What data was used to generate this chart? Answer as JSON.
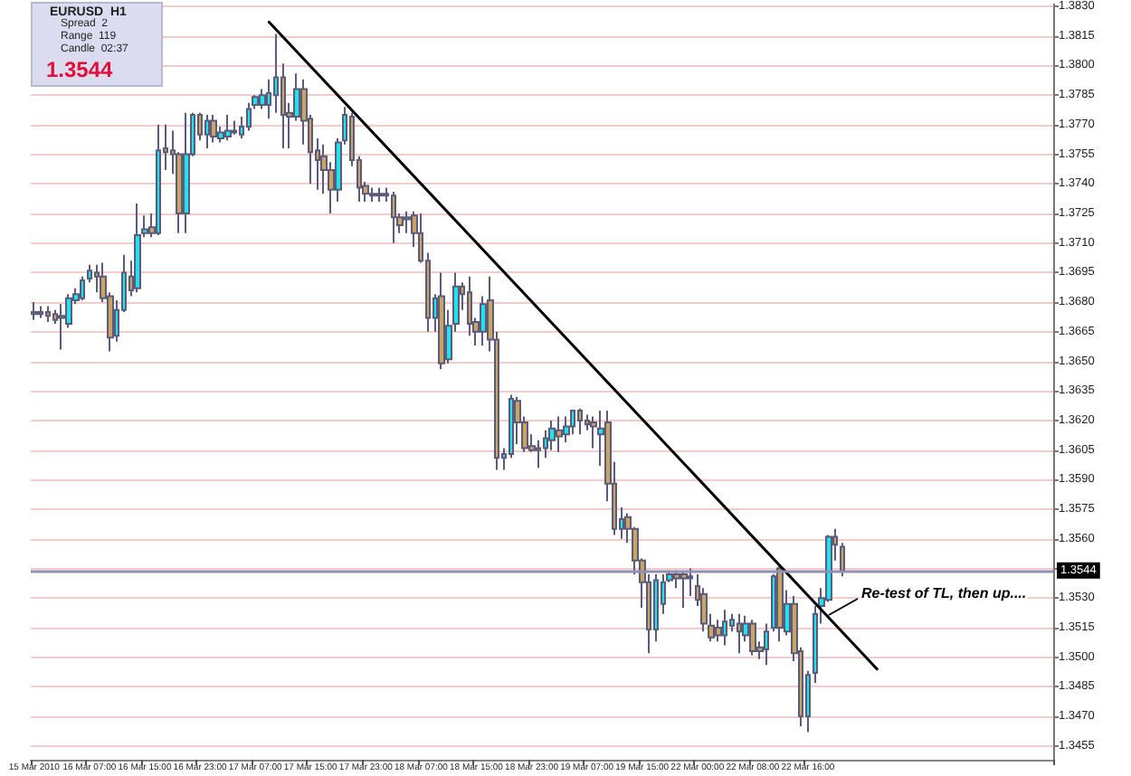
{
  "chart_data": {
    "type": "candlestick",
    "categories": [
      "15 Mar 2010",
      null,
      null,
      null,
      null,
      null,
      null,
      null,
      "16 Mar 07:00",
      null,
      null,
      null,
      null,
      null,
      null,
      null,
      "16 Mar 15:00",
      null,
      null,
      null,
      null,
      null,
      null,
      null,
      "16 Mar 23:00",
      null,
      null,
      null,
      null,
      null,
      null,
      null,
      "17 Mar 07:00",
      null,
      null,
      null,
      null,
      null,
      null,
      null,
      "17 Mar 15:00",
      null,
      null,
      null,
      null,
      null,
      null,
      null,
      "17 Mar 23:00",
      null,
      null,
      null,
      null,
      null,
      null,
      null,
      "18 Mar 07:00",
      null,
      null,
      null,
      null,
      null,
      null,
      null,
      "18 Mar 15:00",
      null,
      null,
      null,
      null,
      null,
      null,
      null,
      "18 Mar 23:00",
      null,
      null,
      null,
      null,
      null,
      null,
      null,
      "19 Mar 07:00",
      null,
      null,
      null,
      null,
      null,
      null,
      null,
      "19 Mar 15:00",
      null,
      null,
      null,
      null,
      null,
      null,
      null,
      "22 Mar 00:00",
      null,
      null,
      null,
      null,
      null,
      null,
      null,
      "22 Mar 08:00",
      null,
      null,
      null,
      null,
      null,
      null,
      null,
      "22 Mar 16:00",
      null,
      null,
      null,
      null,
      null,
      null,
      null,
      null,
      null,
      null,
      null,
      null,
      null,
      null,
      null,
      null,
      null,
      null,
      null,
      null,
      null,
      null,
      null,
      null,
      null,
      null,
      null,
      null,
      null,
      null,
      null,
      null,
      null,
      null,
      null
    ],
    "series": [
      {
        "colors": [
          "#22e2f0",
          "#c9a467",
          "#c9a467",
          "#c9a467",
          "#c9a467",
          "#22e2f0",
          "#22e2f0",
          "#22e2f0",
          "#22e2f0",
          "#c9a467",
          "#c9a467",
          "#c9a467",
          "#22e2f0",
          "#22e2f0",
          "#c9a467",
          "#22e2f0",
          "#22e2f0",
          "#c9a467",
          "#22e2f0",
          "#c9a467",
          "#c9a467",
          "#c9a467",
          "#22e2f0",
          "#22e2f0",
          "#c9a467",
          "#22e2f0",
          "#c9a467",
          "#22e2f0",
          "#22e2f0",
          "#22e2f0",
          "#22e2f0",
          "#22e2f0",
          "#22e2f0",
          "#22e2f0",
          "#22e2f0",
          "#22e2f0",
          "#c9a467",
          "#c9a467",
          "#22e2f0",
          "#c9a467",
          "#c9a467",
          "#c9a467",
          "#c9a467",
          "#c9a467",
          "#22e2f0",
          "#22e2f0",
          "#c9a467",
          "#c9a467",
          "#c9a467",
          "#c9a467",
          "#22e2f0",
          "#c9a467",
          "#c9a467",
          "#c9a467",
          "#22e2f0",
          "#c9a467",
          "#c9a467",
          "#c9a467",
          "#22e2f0",
          "#c9a467",
          "#22e2f0",
          "#22e2f0",
          "#c9a467",
          "#c9a467",
          "#c9a467",
          "#22e2f0",
          "#c9a467",
          "#c9a467",
          "#22e2f0",
          "#22e2f0",
          "#c9a467",
          "#c9a467",
          "#c9a467",
          "#22e2f0",
          "#22e2f0",
          "#22e2f0",
          "#c9a467",
          "#22e2f0",
          "#22e2f0",
          "#c9a467",
          "#c9a467",
          "#c9a467",
          "#22e2f0",
          "#c9a467",
          "#c9a467",
          "#22e2f0",
          "#c9a467",
          "#c9a467",
          "#c9a467",
          "#c9a467",
          "#22e2f0",
          "#22e2f0",
          "#22e2f0",
          "#c9a467",
          "#c9a467",
          "#22e2f0",
          "#c9a467",
          "#c9a467",
          "#c9a467",
          "#c9a467",
          "#22e2f0",
          "#22e2f0",
          "#c9a467",
          "#22e2f0",
          "#c9a467",
          "#c9a467",
          "#22e2f0",
          "#22e2f0",
          "#c9a467",
          "#22e2f0",
          "#c9a467",
          "#c9a467",
          "#22e2f0",
          "#22e2f0",
          "#22e2f0",
          "#22e2f0",
          "#c9a467",
          "#c9a467",
          null,
          null,
          null,
          null,
          null,
          null,
          null,
          null,
          null,
          null,
          null,
          null,
          null,
          null,
          null,
          null,
          null,
          null,
          null,
          null,
          null,
          null,
          null,
          null,
          null,
          null,
          null,
          null,
          null,
          null
        ],
        "ohlc": [
          [
            1.3674,
            1.368,
            1.3671,
            1.3675
          ],
          [
            1.3675,
            1.3678,
            1.3672,
            1.3674
          ],
          [
            1.3675,
            1.3678,
            1.367,
            1.3673
          ],
          [
            1.3674,
            1.3676,
            1.3669,
            1.3671
          ],
          [
            1.3673,
            1.3679,
            1.3656,
            1.3672
          ],
          [
            1.3669,
            1.3684,
            1.3667,
            1.3682
          ],
          [
            1.3681,
            1.3687,
            1.3679,
            1.3684
          ],
          [
            1.3682,
            1.3693,
            1.3681,
            1.3691
          ],
          [
            1.3692,
            1.3699,
            1.369,
            1.3696
          ],
          [
            1.3695,
            1.3699,
            1.3685,
            1.3693
          ],
          [
            1.3693,
            1.37,
            1.368,
            1.3682
          ],
          [
            1.3683,
            1.3685,
            1.3655,
            1.3662
          ],
          [
            1.3663,
            1.3681,
            1.366,
            1.3676
          ],
          [
            1.3676,
            1.3704,
            1.3675,
            1.3695
          ],
          [
            1.3693,
            1.3701,
            1.3683,
            1.3686
          ],
          [
            1.3687,
            1.373,
            1.3685,
            1.3714
          ],
          [
            1.3715,
            1.3724,
            1.3713,
            1.3717
          ],
          [
            1.3718,
            1.3725,
            1.3713,
            1.3715
          ],
          [
            1.3715,
            1.377,
            1.3714,
            1.3757
          ],
          [
            1.3758,
            1.377,
            1.3747,
            1.3756
          ],
          [
            1.3757,
            1.3767,
            1.3745,
            1.3755
          ],
          [
            1.3755,
            1.3756,
            1.3715,
            1.3725
          ],
          [
            1.3725,
            1.3776,
            1.3715,
            1.3755
          ],
          [
            1.3755,
            1.3776,
            1.3754,
            1.3775
          ],
          [
            1.3775,
            1.3776,
            1.3762,
            1.3765
          ],
          [
            1.3765,
            1.3775,
            1.3758,
            1.3772
          ],
          [
            1.3772,
            1.3775,
            1.3761,
            1.3764
          ],
          [
            1.3763,
            1.3769,
            1.3761,
            1.3766
          ],
          [
            1.3764,
            1.3775,
            1.3762,
            1.3767
          ],
          [
            1.3766,
            1.3772,
            1.3765,
            1.3767
          ],
          [
            1.3765,
            1.3774,
            1.3763,
            1.3769
          ],
          [
            1.3769,
            1.3781,
            1.3767,
            1.3778
          ],
          [
            1.378,
            1.3785,
            1.3778,
            1.3784
          ],
          [
            1.378,
            1.3788,
            1.3778,
            1.3785
          ],
          [
            1.378,
            1.3793,
            1.3773,
            1.3786
          ],
          [
            1.3785,
            1.3816,
            1.3776,
            1.3794
          ],
          [
            1.3794,
            1.3801,
            1.3758,
            1.3775
          ],
          [
            1.3776,
            1.3781,
            1.3758,
            1.3774
          ],
          [
            1.3774,
            1.3796,
            1.3772,
            1.3788
          ],
          [
            1.3788,
            1.3793,
            1.376,
            1.3772
          ],
          [
            1.3773,
            1.3775,
            1.374,
            1.3756
          ],
          [
            1.3757,
            1.3763,
            1.3737,
            1.3752
          ],
          [
            1.3754,
            1.376,
            1.3735,
            1.3747
          ],
          [
            1.3747,
            1.3751,
            1.3725,
            1.3737
          ],
          [
            1.3737,
            1.3763,
            1.3731,
            1.3761
          ],
          [
            1.3762,
            1.3779,
            1.376,
            1.3775
          ],
          [
            1.3774,
            1.3776,
            1.3749,
            1.3752
          ],
          [
            1.3752,
            1.3754,
            1.3731,
            1.3738
          ],
          [
            1.3739,
            1.3741,
            1.3731,
            1.3735
          ],
          [
            1.3735,
            1.3738,
            1.3731,
            1.3734
          ],
          [
            1.3734,
            1.3738,
            1.3731,
            1.3735
          ],
          [
            1.3735,
            1.3738,
            1.3731,
            1.3734
          ],
          [
            1.3734,
            1.3736,
            1.371,
            1.3723
          ],
          [
            1.3723,
            1.3725,
            1.3715,
            1.3719
          ],
          [
            1.3722,
            1.3726,
            1.3715,
            1.3723
          ],
          [
            1.3724,
            1.3726,
            1.3708,
            1.3715
          ],
          [
            1.3715,
            1.3725,
            1.37,
            1.3701
          ],
          [
            1.3701,
            1.3705,
            1.3665,
            1.3672
          ],
          [
            1.3672,
            1.3684,
            1.3665,
            1.3682
          ],
          [
            1.3683,
            1.3695,
            1.3646,
            1.3649
          ],
          [
            1.3651,
            1.3676,
            1.3649,
            1.3668
          ],
          [
            1.3669,
            1.3695,
            1.3665,
            1.3688
          ],
          [
            1.3688,
            1.369,
            1.3676,
            1.3684
          ],
          [
            1.3685,
            1.3693,
            1.3663,
            1.3669
          ],
          [
            1.367,
            1.3672,
            1.3658,
            1.3665
          ],
          [
            1.3665,
            1.3683,
            1.3658,
            1.3679
          ],
          [
            1.3681,
            1.3693,
            1.3655,
            1.3661
          ],
          [
            1.3661,
            1.3665,
            1.3595,
            1.3601
          ],
          [
            1.3601,
            1.3606,
            1.3595,
            1.3603
          ],
          [
            1.3603,
            1.3633,
            1.3601,
            1.3631
          ],
          [
            1.363,
            1.3632,
            1.3608,
            1.3619
          ],
          [
            1.3619,
            1.3622,
            1.3604,
            1.3606
          ],
          [
            1.3607,
            1.3613,
            1.3604,
            1.3605
          ],
          [
            1.3605,
            1.361,
            1.3596,
            1.3606
          ],
          [
            1.3606,
            1.3615,
            1.3601,
            1.3611
          ],
          [
            1.361,
            1.362,
            1.3605,
            1.3616
          ],
          [
            1.3615,
            1.3622,
            1.3604,
            1.3612
          ],
          [
            1.3613,
            1.3622,
            1.3609,
            1.3617
          ],
          [
            1.3617,
            1.3625,
            1.3613,
            1.3625
          ],
          [
            1.3625,
            1.3626,
            1.3613,
            1.362
          ],
          [
            1.362,
            1.3623,
            1.3615,
            1.3618
          ],
          [
            1.3619,
            1.3622,
            1.3606,
            1.3617
          ],
          [
            1.3613,
            1.3625,
            1.3597,
            1.3616
          ],
          [
            1.3619,
            1.3625,
            1.3579,
            1.3588
          ],
          [
            1.3588,
            1.3599,
            1.3562,
            1.3565
          ],
          [
            1.3565,
            1.3576,
            1.356,
            1.357
          ],
          [
            1.3571,
            1.3573,
            1.3558,
            1.3565
          ],
          [
            1.3565,
            1.3566,
            1.3542,
            1.3549
          ],
          [
            1.3549,
            1.355,
            1.3525,
            1.3538
          ],
          [
            1.3538,
            1.3542,
            1.3502,
            1.3514
          ],
          [
            1.3514,
            1.3542,
            1.3508,
            1.3539
          ],
          [
            1.3527,
            1.3542,
            1.3522,
            1.3538
          ],
          [
            1.3539,
            1.3544,
            1.3538,
            1.3542
          ],
          [
            1.3542,
            1.3544,
            1.3535,
            1.354
          ],
          [
            1.3542,
            1.3543,
            1.3525,
            1.354
          ],
          [
            1.354,
            1.3545,
            1.3531,
            1.3541
          ],
          [
            1.3536,
            1.3542,
            1.3526,
            1.3529
          ],
          [
            1.3532,
            1.3535,
            1.3513,
            1.3517
          ],
          [
            1.3516,
            1.3522,
            1.3508,
            1.351
          ],
          [
            1.3515,
            1.3519,
            1.3508,
            1.3511
          ],
          [
            1.3511,
            1.3524,
            1.3506,
            1.3518
          ],
          [
            1.3516,
            1.3522,
            1.3513,
            1.3519
          ],
          [
            1.3517,
            1.3522,
            1.3502,
            1.3513
          ],
          [
            1.3511,
            1.3521,
            1.3508,
            1.3517
          ],
          [
            1.3517,
            1.3519,
            1.3501,
            1.3503
          ],
          [
            1.3505,
            1.3508,
            1.3499,
            1.3503
          ],
          [
            1.3504,
            1.3517,
            1.3496,
            1.3513
          ],
          [
            1.3515,
            1.3542,
            1.3513,
            1.3541
          ],
          [
            1.3545,
            1.3546,
            1.3508,
            1.3515
          ],
          [
            1.3513,
            1.3534,
            1.3511,
            1.3527
          ],
          [
            1.3527,
            1.3531,
            1.3498,
            1.3502
          ],
          [
            1.3503,
            1.3505,
            1.3465,
            1.347
          ],
          [
            1.347,
            1.3493,
            1.3462,
            1.3491
          ],
          [
            1.3492,
            1.3526,
            1.3487,
            1.3522
          ],
          [
            1.3526,
            1.3535,
            1.3517,
            1.353
          ],
          [
            1.3529,
            1.3562,
            1.3528,
            1.3561
          ],
          [
            1.3561,
            1.3565,
            1.3549,
            1.3557
          ],
          [
            1.3556,
            1.3558,
            1.3541,
            1.3544
          ],
          null,
          null,
          null,
          null,
          null,
          null,
          null,
          null,
          null,
          null,
          null,
          null,
          null,
          null,
          null,
          null,
          null,
          null,
          null,
          null,
          null,
          null,
          null,
          null,
          null,
          null,
          null,
          null,
          null,
          null
        ]
      },
      {
        "type": "line",
        "color": "#000000",
        "values": [
          null,
          null,
          null,
          null,
          null,
          null,
          null,
          null,
          null,
          null,
          null,
          null,
          null,
          null,
          null,
          null,
          null,
          null,
          null,
          null,
          null,
          null,
          null,
          null,
          null,
          null,
          null,
          null,
          null,
          null,
          null,
          null,
          null,
          null,
          1.3822,
          null,
          null,
          null,
          null,
          null,
          null,
          null,
          null,
          null,
          null,
          null,
          null,
          null,
          null,
          null,
          null,
          null,
          null,
          null,
          null,
          null,
          null,
          null,
          null,
          null,
          null,
          null,
          null,
          null,
          null,
          null,
          null,
          null,
          null,
          null,
          null,
          null,
          null,
          null,
          null,
          null,
          null,
          null,
          null,
          null,
          null,
          null,
          null,
          null,
          null,
          null,
          null,
          null,
          null,
          null,
          null,
          null,
          null,
          null,
          null,
          null,
          null,
          null,
          null,
          null,
          null,
          null,
          null,
          null,
          null,
          null,
          null,
          null,
          null,
          null,
          null,
          null,
          null,
          null,
          null,
          null,
          null,
          null,
          null,
          null,
          null,
          null,
          1.3494,
          null,
          null,
          null,
          null,
          null,
          null,
          null,
          null,
          null,
          null,
          null,
          null,
          null,
          null,
          null,
          null,
          null,
          null,
          null,
          null,
          null,
          null,
          null,
          null,
          null
        ]
      }
    ],
    "ylim": [
      1.3448,
      1.3831
    ],
    "yticks": [
      1.3455,
      {
        "value": 1.347,
        "label": "1.3470"
      },
      1.3485,
      {
        "value": 1.35,
        "label": "1.3500"
      },
      1.3515,
      {
        "value": 1.353,
        "label": "1.3530"
      },
      {
        "value": 1.3545,
        "label": null
      },
      {
        "value": 1.356,
        "label": "1.3560"
      },
      1.3575,
      {
        "value": 1.359,
        "label": "1.3590"
      },
      1.3605,
      {
        "value": 1.362,
        "label": "1.3620"
      },
      1.3635,
      {
        "value": 1.365,
        "label": "1.3650"
      },
      1.3665,
      {
        "value": 1.368,
        "label": "1.3680"
      },
      1.3695,
      {
        "value": 1.371,
        "label": "1.3710"
      },
      1.3725,
      {
        "value": 1.374,
        "label": "1.3740"
      },
      1.3755,
      {
        "value": 1.377,
        "label": "1.3770"
      },
      1.3785,
      {
        "value": 1.38,
        "label": "1.3800"
      },
      1.3815,
      {
        "value": 1.383,
        "label": "1.3830"
      }
    ],
    "grid": "y",
    "marker": "none",
    "ref_lines": [
      {
        "axis": "y",
        "value": 1.3544,
        "label": "1.3544",
        "color": "#9090b0"
      }
    ],
    "annotations": [
      "EURUSD  H1",
      "Spread  2",
      "Range  119",
      "Candle  02:37",
      "1.3544",
      "Re-test of TL, then up...."
    ]
  }
}
